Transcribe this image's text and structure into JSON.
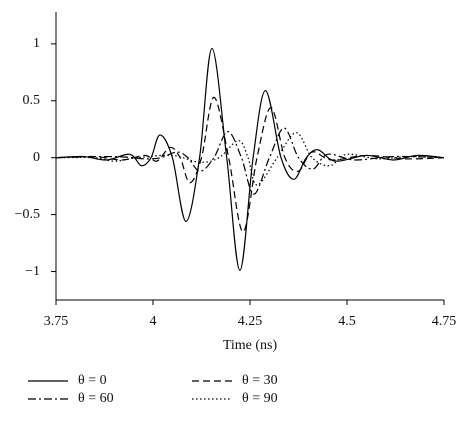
{
  "chart_data": {
    "type": "line",
    "xlabel": "Time (ns)",
    "xlim": [
      3.75,
      4.75
    ],
    "xticks": [
      3.75,
      4,
      4.25,
      4.5,
      4.75
    ],
    "ylim": [
      -1.25,
      1.28
    ],
    "yticks": [
      {
        "value": -1,
        "label": "−1"
      },
      {
        "value": -0.5,
        "label": "−0.5"
      },
      0,
      0.5,
      1
    ],
    "grid": false,
    "series": [
      {
        "name": "θ = 0",
        "color": "#000000",
        "style": "solid",
        "x": [
          3.75,
          3.82,
          3.88,
          3.94,
          3.97,
          3.995,
          4.018,
          4.05,
          4.085,
          4.12,
          4.152,
          4.19,
          4.224,
          4.258,
          4.29,
          4.33,
          4.363,
          4.395,
          4.425,
          4.47,
          4.55,
          4.62,
          4.68,
          4.75
        ],
        "values": [
          0,
          0.01,
          -0.02,
          0.03,
          -0.07,
          0,
          0.2,
          0,
          -0.56,
          0,
          0.96,
          0,
          -0.99,
          0,
          0.59,
          0,
          -0.19,
          0,
          0.07,
          -0.03,
          0.02,
          -0.02,
          0.02,
          0
        ]
      },
      {
        "name": "θ = 30",
        "color": "#000000",
        "style": "dashed",
        "x": [
          3.75,
          3.85,
          3.92,
          3.98,
          4.01,
          4.044,
          4.07,
          4.095,
          4.125,
          4.157,
          4.195,
          4.232,
          4.268,
          4.304,
          4.34,
          4.374,
          4.41,
          4.46,
          4.55,
          4.65,
          4.75
        ],
        "values": [
          0,
          0.01,
          -0.02,
          0.02,
          -0.03,
          0.09,
          0,
          -0.22,
          0,
          0.53,
          0,
          -0.65,
          0,
          0.44,
          0,
          -0.12,
          0.05,
          -0.02,
          0.02,
          -0.01,
          0
        ]
      },
      {
        "name": "θ = 60",
        "color": "#000000",
        "style": "dashdot",
        "x": [
          3.75,
          3.9,
          3.98,
          4.02,
          4.062,
          4.09,
          4.121,
          4.157,
          4.193,
          4.228,
          4.26,
          4.3,
          4.338,
          4.375,
          4.412,
          4.45,
          4.52,
          4.62,
          4.75
        ],
        "values": [
          0,
          0.01,
          -0.01,
          0,
          0.05,
          0,
          -0.12,
          0,
          0.23,
          0,
          -0.32,
          0,
          0.26,
          0,
          -0.1,
          0.03,
          -0.02,
          0.01,
          0
        ]
      },
      {
        "name": "θ = 90",
        "color": "#000000",
        "style": "dotted",
        "x": [
          3.75,
          3.85,
          3.9,
          3.96,
          4.05,
          4.12,
          4.17,
          4.22,
          4.245,
          4.268,
          4.32,
          4.369,
          4.41,
          4.456,
          4.5,
          4.58,
          4.66,
          4.75
        ],
        "values": [
          0,
          0,
          -0.03,
          0,
          0.02,
          -0.04,
          0,
          0.15,
          0,
          -0.24,
          0,
          0.22,
          0,
          -0.07,
          0.03,
          -0.01,
          0.01,
          0
        ]
      }
    ]
  }
}
